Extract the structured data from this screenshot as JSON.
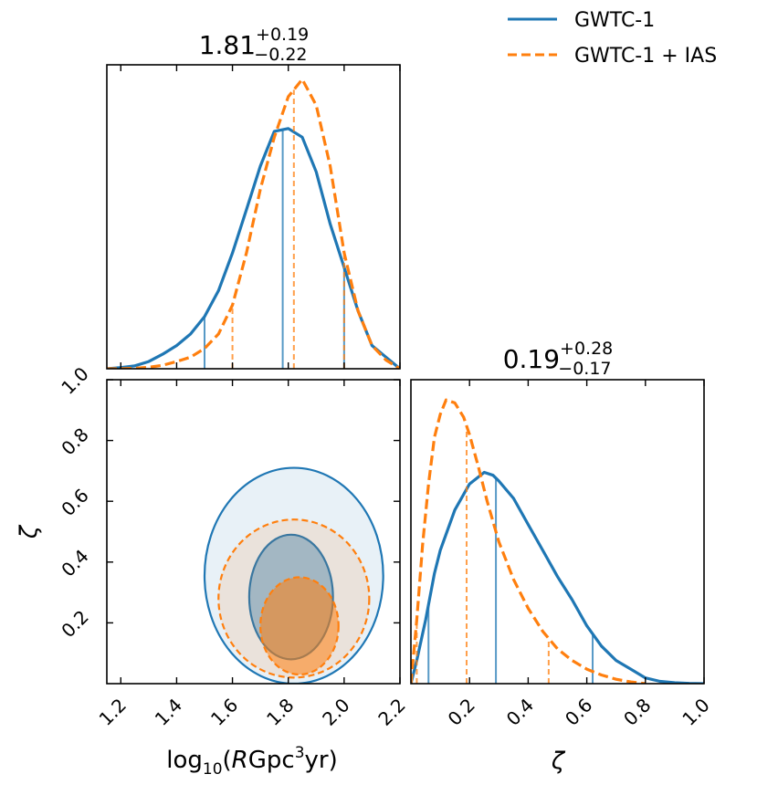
{
  "colors": {
    "series1": "#1f77b4",
    "series2": "#ff7f0e"
  },
  "legend": {
    "entries": [
      {
        "label": "GWTC-1",
        "style": "solid",
        "color": "#1f77b4"
      },
      {
        "label": "GWTC-1 + IAS",
        "style": "dashed",
        "color": "#ff7f0e"
      }
    ]
  },
  "chart_data": [
    {
      "type": "line",
      "panel": "top-left",
      "title": {
        "value": "1.81",
        "upper": "+0.19",
        "lower": "−0.22"
      },
      "xlim": [
        1.15,
        2.2
      ],
      "ylim": [
        0,
        1.05
      ],
      "series": [
        {
          "name": "GWTC-1",
          "x": [
            1.15,
            1.2,
            1.25,
            1.3,
            1.35,
            1.4,
            1.45,
            1.5,
            1.55,
            1.6,
            1.65,
            1.7,
            1.75,
            1.8,
            1.85,
            1.9,
            1.95,
            2.0,
            2.05,
            2.1,
            2.15,
            2.2
          ],
          "y": [
            0.0,
            0.004,
            0.01,
            0.025,
            0.05,
            0.08,
            0.12,
            0.18,
            0.27,
            0.4,
            0.55,
            0.7,
            0.82,
            0.83,
            0.8,
            0.68,
            0.5,
            0.35,
            0.2,
            0.08,
            0.04,
            0.0
          ],
          "quantiles": [
            1.5,
            1.78,
            2.0
          ]
        },
        {
          "name": "GWTC-1 + IAS",
          "x": [
            1.15,
            1.2,
            1.25,
            1.3,
            1.35,
            1.4,
            1.45,
            1.5,
            1.55,
            1.6,
            1.65,
            1.7,
            1.75,
            1.8,
            1.85,
            1.9,
            1.95,
            2.0,
            2.05,
            2.1,
            2.15,
            2.2
          ],
          "y": [
            0.0,
            0.0,
            0.002,
            0.005,
            0.012,
            0.025,
            0.04,
            0.07,
            0.12,
            0.22,
            0.4,
            0.62,
            0.8,
            0.94,
            1.0,
            0.91,
            0.7,
            0.4,
            0.2,
            0.08,
            0.03,
            0.0
          ],
          "quantiles": [
            1.6,
            1.82,
            2.0
          ]
        }
      ]
    },
    {
      "type": "line",
      "panel": "bottom-right",
      "title": {
        "value": "0.19",
        "upper": "+0.28",
        "lower": "−0.17"
      },
      "xlabel": "ζ",
      "xlim": [
        0.0,
        1.0
      ],
      "ylim": [
        0,
        1.05
      ],
      "xticks": [
        "0.2",
        "0.4",
        "0.6",
        "0.8",
        "1.0"
      ],
      "series": [
        {
          "name": "GWTC-1",
          "x": [
            0.0,
            0.02,
            0.05,
            0.08,
            0.1,
            0.15,
            0.2,
            0.25,
            0.28,
            0.3,
            0.35,
            0.4,
            0.45,
            0.5,
            0.55,
            0.6,
            0.65,
            0.7,
            0.75,
            0.8,
            0.85,
            0.9,
            0.95,
            1.0
          ],
          "y": [
            0.0,
            0.08,
            0.22,
            0.38,
            0.46,
            0.6,
            0.69,
            0.73,
            0.72,
            0.7,
            0.64,
            0.55,
            0.46,
            0.37,
            0.29,
            0.2,
            0.13,
            0.08,
            0.05,
            0.02,
            0.008,
            0.003,
            0.001,
            0.0
          ],
          "quantiles": [
            0.06,
            0.29,
            0.62
          ]
        },
        {
          "name": "GWTC-1 + IAS",
          "x": [
            0.0,
            0.02,
            0.04,
            0.06,
            0.08,
            0.1,
            0.12,
            0.15,
            0.18,
            0.2,
            0.23,
            0.26,
            0.3,
            0.35,
            0.4,
            0.45,
            0.5,
            0.55,
            0.6,
            0.65,
            0.7,
            0.75,
            0.8
          ],
          "y": [
            0.0,
            0.22,
            0.48,
            0.69,
            0.85,
            0.93,
            0.98,
            0.97,
            0.92,
            0.86,
            0.75,
            0.63,
            0.49,
            0.36,
            0.26,
            0.18,
            0.12,
            0.08,
            0.05,
            0.03,
            0.015,
            0.006,
            0.0
          ],
          "quantiles": [
            0.02,
            0.19,
            0.47
          ]
        }
      ]
    },
    {
      "type": "contour",
      "panel": "bottom-left",
      "xlabel": "log₁₀(RGpc³yr)",
      "ylabel": "ζ",
      "xlim": [
        1.15,
        2.2
      ],
      "ylim": [
        0.0,
        1.0
      ],
      "xticks": [
        "1.2",
        "1.4",
        "1.6",
        "1.8",
        "2.0",
        "2.2"
      ],
      "yticks": [
        "0.2",
        "0.4",
        "0.6",
        "0.8",
        "1.0"
      ],
      "series": [
        {
          "name": "GWTC-1",
          "contours": [
            {
              "level": "outer",
              "center": [
                1.82,
                0.36
              ],
              "halfwidth": 0.32,
              "top": 0.71,
              "bottom": 0.0
            },
            {
              "level": "inner",
              "center": [
                1.81,
                0.28
              ],
              "halfwidth": 0.15,
              "top": 0.49,
              "bottom": 0.08
            }
          ]
        },
        {
          "name": "GWTC-1 + IAS",
          "contours": [
            {
              "level": "outer",
              "center": [
                1.82,
                0.28
              ],
              "halfwidth": 0.27,
              "top": 0.54,
              "bottom": 0.02
            },
            {
              "level": "inner",
              "center": [
                1.84,
                0.2
              ],
              "halfwidth": 0.14,
              "top": 0.35,
              "bottom": 0.03
            }
          ]
        }
      ]
    }
  ]
}
